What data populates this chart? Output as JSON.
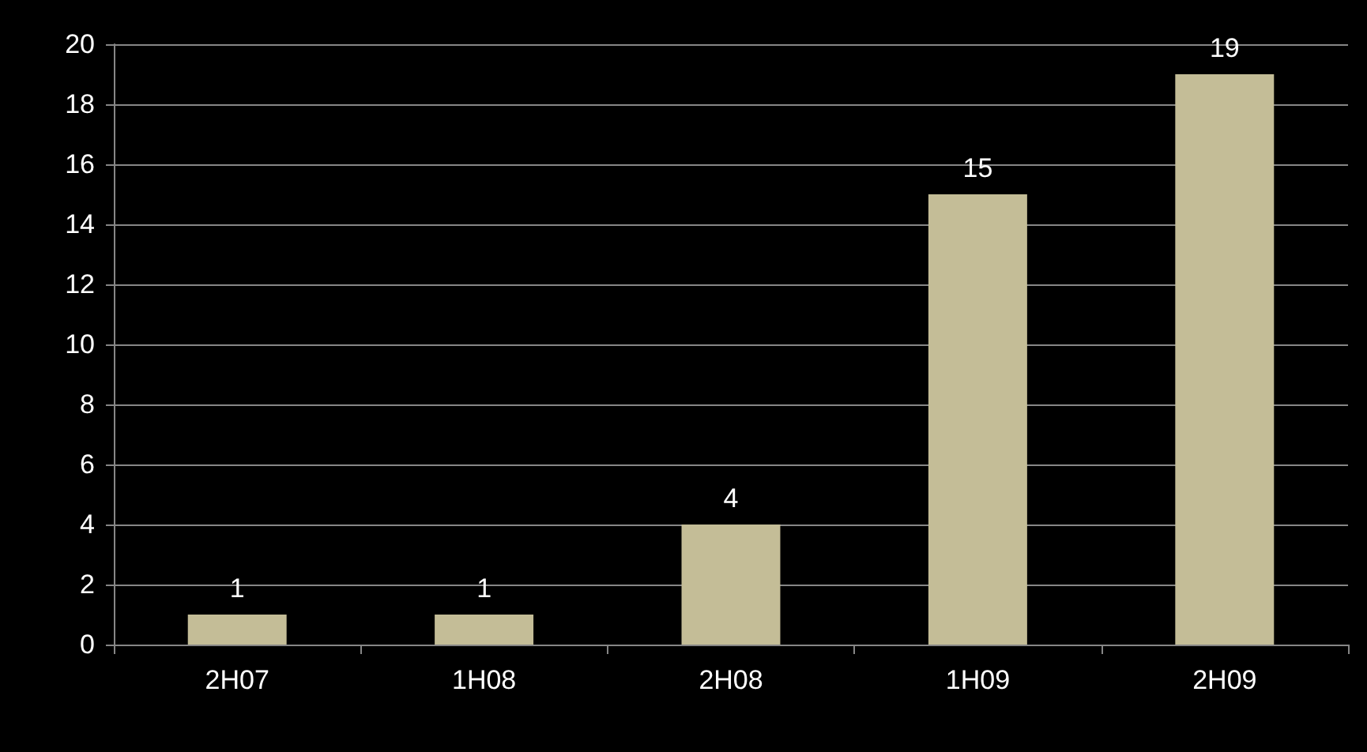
{
  "chart_data": {
    "type": "bar",
    "categories": [
      "2H07",
      "1H08",
      "2H08",
      "1H09",
      "2H09"
    ],
    "values": [
      1,
      1,
      4,
      15,
      19
    ],
    "color": "#c4bd97",
    "ylim": [
      0,
      20
    ],
    "yticks": [
      0,
      2,
      4,
      6,
      8,
      10,
      12,
      14,
      16,
      18,
      20
    ],
    "grid": "y",
    "data_labels": true
  }
}
